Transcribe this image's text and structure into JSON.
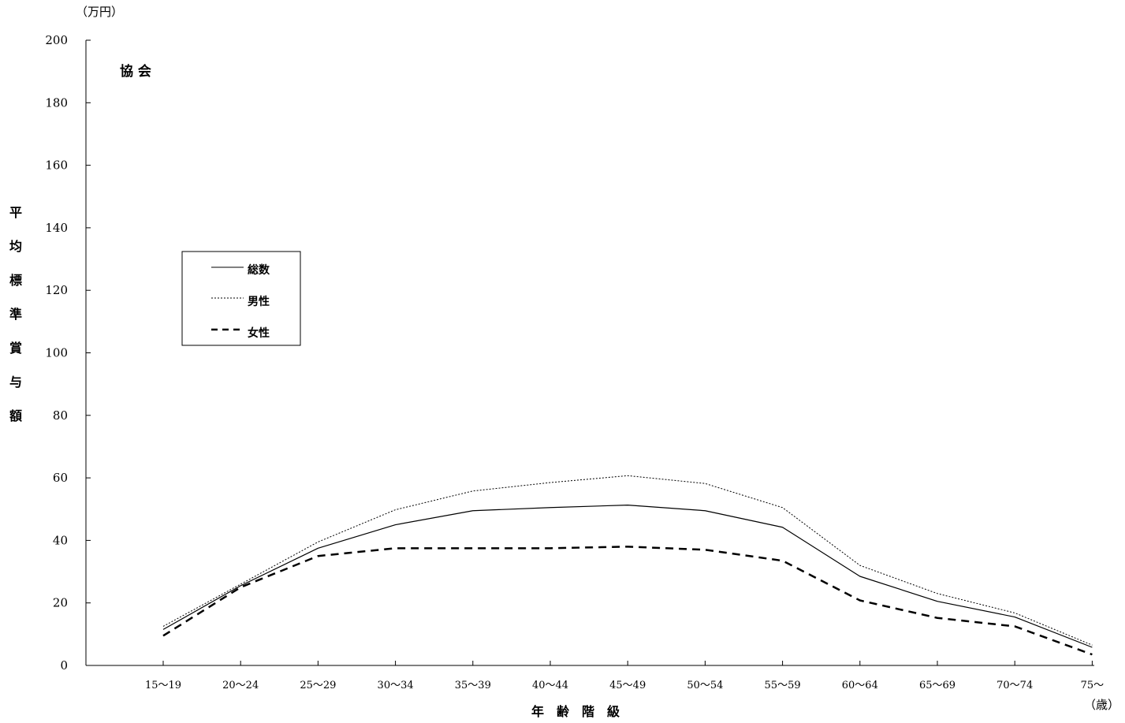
{
  "chart_data": {
    "type": "line",
    "title": "協 会",
    "y_unit": "（万円）",
    "x_unit": "（歳）",
    "ylabel": "平均標準賞与額",
    "xlabel": "年　齢　階　級",
    "categories": [
      "15～19",
      "20～24",
      "25～29",
      "30～34",
      "35～39",
      "40～44",
      "45～49",
      "50～54",
      "55～59",
      "60～64",
      "65～69",
      "70～74",
      "75～"
    ],
    "ylim": [
      0,
      200
    ],
    "yticks": [
      0,
      20,
      40,
      60,
      80,
      100,
      120,
      140,
      160,
      180,
      200
    ],
    "grid": false,
    "legend_position": "left, middle",
    "series": [
      {
        "name": "総数",
        "style": "solid",
        "color": "#000000",
        "values": [
          11.5,
          25.5,
          37.5,
          45.0,
          49.5,
          50.5,
          51.3,
          49.5,
          44.2,
          28.5,
          20.5,
          15.5,
          5.8
        ]
      },
      {
        "name": "男性",
        "style": "dotted",
        "color": "#000000",
        "values": [
          12.5,
          26.0,
          39.5,
          49.8,
          55.8,
          58.5,
          60.7,
          58.2,
          50.5,
          32.0,
          23.0,
          16.8,
          6.5
        ]
      },
      {
        "name": "女性",
        "style": "dashed",
        "color": "#000000",
        "values": [
          9.5,
          25.0,
          35.0,
          37.5,
          37.5,
          37.5,
          38.0,
          37.0,
          33.5,
          20.8,
          15.2,
          12.5,
          3.5
        ]
      }
    ]
  }
}
